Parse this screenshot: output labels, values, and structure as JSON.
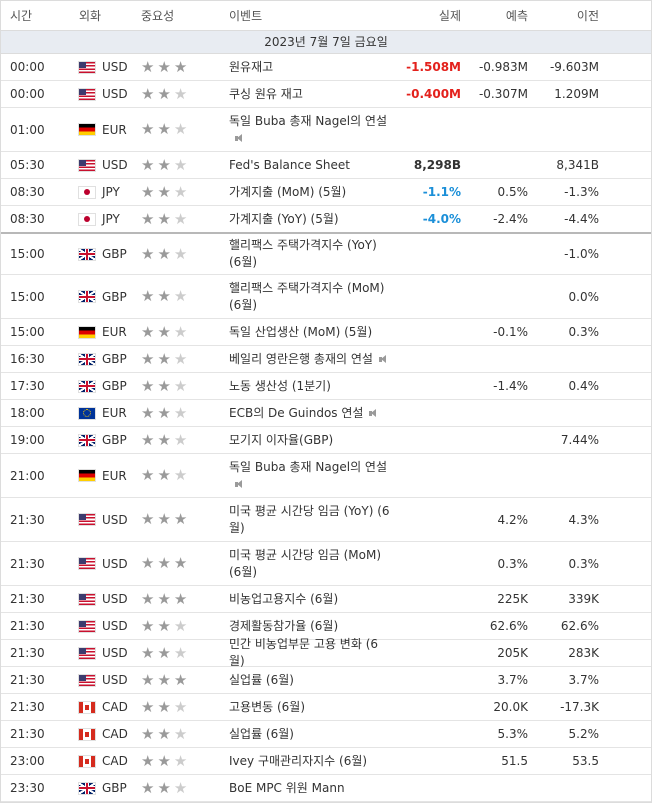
{
  "header": {
    "time": "시간",
    "currency": "외화",
    "importance": "중요성",
    "event": "이벤트",
    "actual": "실제",
    "forecast": "예측",
    "previous": "이전"
  },
  "date": "2023년 7월 7일 금요일",
  "rows": [
    {
      "time": "00:00",
      "cur": "USD",
      "flag": "us",
      "stars": 3,
      "event": "원유재고",
      "speech": false,
      "actual": "-1.508M",
      "actual_type": "neg",
      "forecast": "-0.983M",
      "previous": "-9.603M",
      "h": 26,
      "sep": false
    },
    {
      "time": "00:00",
      "cur": "USD",
      "flag": "us",
      "stars": 2,
      "event": "쿠싱 원유 재고",
      "speech": false,
      "actual": "-0.400M",
      "actual_type": "neg",
      "forecast": "-0.307M",
      "previous": "1.209M",
      "h": 26,
      "sep": false
    },
    {
      "time": "01:00",
      "cur": "EUR",
      "flag": "de",
      "stars": 2,
      "event": "독일 Buba 총재 Nagel의 연설",
      "speech": true,
      "actual": "",
      "actual_type": "",
      "forecast": "",
      "previous": "",
      "h": 43,
      "sep": false
    },
    {
      "time": "05:30",
      "cur": "USD",
      "flag": "us",
      "stars": 2,
      "event": "Fed's Balance Sheet",
      "speech": false,
      "actual": "8,298B",
      "actual_type": "bold",
      "forecast": "",
      "previous": "8,341B",
      "h": 26,
      "sep": false
    },
    {
      "time": "08:30",
      "cur": "JPY",
      "flag": "jp",
      "stars": 2,
      "event": "가계지출 (MoM) (5월)",
      "speech": false,
      "actual": "-1.1%",
      "actual_type": "pos",
      "forecast": "0.5%",
      "previous": "-1.3%",
      "h": 26,
      "sep": false
    },
    {
      "time": "08:30",
      "cur": "JPY",
      "flag": "jp",
      "stars": 2,
      "event": "가계지출 (YoY) (5월)",
      "speech": false,
      "actual": "-4.0%",
      "actual_type": "pos",
      "forecast": "-2.4%",
      "previous": "-4.4%",
      "h": 26,
      "sep": true
    },
    {
      "time": "15:00",
      "cur": "GBP",
      "flag": "gb",
      "stars": 2,
      "event": "핼리팩스 주택가격지수 (YoY) (6월)",
      "speech": false,
      "actual": "",
      "actual_type": "",
      "forecast": "",
      "previous": "-1.0%",
      "h": 40,
      "sep": false
    },
    {
      "time": "15:00",
      "cur": "GBP",
      "flag": "gb",
      "stars": 2,
      "event": "핼리팩스 주택가격지수 (MoM) (6월)",
      "speech": false,
      "actual": "",
      "actual_type": "",
      "forecast": "",
      "previous": "0.0%",
      "h": 43,
      "sep": false
    },
    {
      "time": "15:00",
      "cur": "EUR",
      "flag": "de",
      "stars": 2,
      "event": "독일 산업생산 (MoM) (5월)",
      "speech": false,
      "actual": "",
      "actual_type": "",
      "forecast": "-0.1%",
      "previous": "0.3%",
      "h": 26,
      "sep": false
    },
    {
      "time": "16:30",
      "cur": "GBP",
      "flag": "gb",
      "stars": 2,
      "event": "베일리 영란은행 총재의 연설",
      "speech": true,
      "actual": "",
      "actual_type": "",
      "forecast": "",
      "previous": "",
      "h": 26,
      "sep": false
    },
    {
      "time": "17:30",
      "cur": "GBP",
      "flag": "gb",
      "stars": 2,
      "event": "노동 생산성 (1분기)",
      "speech": false,
      "actual": "",
      "actual_type": "",
      "forecast": "-1.4%",
      "previous": "0.4%",
      "h": 26,
      "sep": false
    },
    {
      "time": "18:00",
      "cur": "EUR",
      "flag": "eu",
      "stars": 2,
      "event": "ECB의 De Guindos 연설",
      "speech": true,
      "actual": "",
      "actual_type": "",
      "forecast": "",
      "previous": "",
      "h": 26,
      "sep": false
    },
    {
      "time": "19:00",
      "cur": "GBP",
      "flag": "gb",
      "stars": 2,
      "event": "모기지 이자율(GBP)",
      "speech": false,
      "actual": "",
      "actual_type": "",
      "forecast": "",
      "previous": "7.44%",
      "h": 26,
      "sep": false
    },
    {
      "time": "21:00",
      "cur": "EUR",
      "flag": "de",
      "stars": 2,
      "event": "독일 Buba 총재 Nagel의 연설",
      "speech": true,
      "actual": "",
      "actual_type": "",
      "forecast": "",
      "previous": "",
      "h": 43,
      "sep": false
    },
    {
      "time": "21:30",
      "cur": "USD",
      "flag": "us",
      "stars": 3,
      "event": "미국 평균 시간당 임금 (YoY) (6월)",
      "speech": false,
      "actual": "",
      "actual_type": "",
      "forecast": "4.2%",
      "previous": "4.3%",
      "h": 43,
      "sep": false
    },
    {
      "time": "21:30",
      "cur": "USD",
      "flag": "us",
      "stars": 3,
      "event": "미국 평균 시간당 임금 (MoM) (6월)",
      "speech": false,
      "actual": "",
      "actual_type": "",
      "forecast": "0.3%",
      "previous": "0.3%",
      "h": 43,
      "sep": false
    },
    {
      "time": "21:30",
      "cur": "USD",
      "flag": "us",
      "stars": 3,
      "event": "비농업고용지수 (6월)",
      "speech": false,
      "actual": "",
      "actual_type": "",
      "forecast": "225K",
      "previous": "339K",
      "h": 26,
      "sep": false
    },
    {
      "time": "21:30",
      "cur": "USD",
      "flag": "us",
      "stars": 2,
      "event": "경제활동참가율 (6월)",
      "speech": false,
      "actual": "",
      "actual_type": "",
      "forecast": "62.6%",
      "previous": "62.6%",
      "h": 26,
      "sep": false
    },
    {
      "time": "21:30",
      "cur": "USD",
      "flag": "us",
      "stars": 2,
      "event": "민간 비농업부문 고용 변화 (6월)",
      "speech": false,
      "actual": "",
      "actual_type": "",
      "forecast": "205K",
      "previous": "283K",
      "h": 26,
      "sep": false
    },
    {
      "time": "21:30",
      "cur": "USD",
      "flag": "us",
      "stars": 3,
      "event": "실업률 (6월)",
      "speech": false,
      "actual": "",
      "actual_type": "",
      "forecast": "3.7%",
      "previous": "3.7%",
      "h": 26,
      "sep": false
    },
    {
      "time": "21:30",
      "cur": "CAD",
      "flag": "ca",
      "stars": 2,
      "event": "고용변동 (6월)",
      "speech": false,
      "actual": "",
      "actual_type": "",
      "forecast": "20.0K",
      "previous": "-17.3K",
      "h": 26,
      "sep": false
    },
    {
      "time": "21:30",
      "cur": "CAD",
      "flag": "ca",
      "stars": 2,
      "event": "실업률 (6월)",
      "speech": false,
      "actual": "",
      "actual_type": "",
      "forecast": "5.3%",
      "previous": "5.2%",
      "h": 26,
      "sep": false
    },
    {
      "time": "23:00",
      "cur": "CAD",
      "flag": "ca",
      "stars": 2,
      "event": "Ivey 구매관리자지수 (6월)",
      "speech": false,
      "actual": "",
      "actual_type": "",
      "forecast": "51.5",
      "previous": "53.5",
      "h": 26,
      "sep": false
    },
    {
      "time": "23:30",
      "cur": "GBP",
      "flag": "gb",
      "stars": 2,
      "event": "BoE MPC 위원 Mann",
      "speech": false,
      "actual": "",
      "actual_type": "",
      "forecast": "",
      "previous": "",
      "h": 26,
      "sep": false
    }
  ]
}
